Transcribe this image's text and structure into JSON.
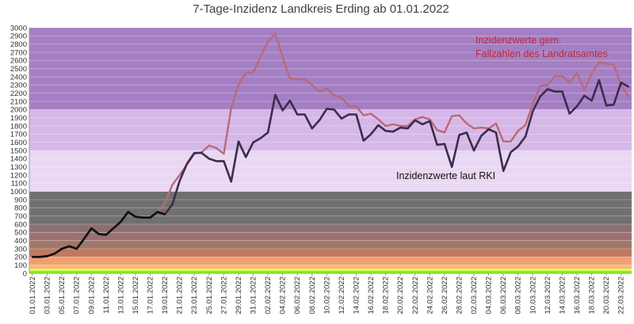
{
  "chart_data": {
    "type": "line",
    "title": "7-Tage-Inzidenz Landkreis Erding ab 01.01.2022",
    "xlabel": "",
    "ylabel": "",
    "ylim": [
      0,
      3000
    ],
    "yticks": [
      0,
      100,
      200,
      300,
      400,
      500,
      600,
      700,
      800,
      900,
      1000,
      1100,
      1200,
      1300,
      1400,
      1500,
      1600,
      1700,
      1800,
      1900,
      2000,
      2100,
      2200,
      2300,
      2400,
      2500,
      2600,
      2700,
      2800,
      2900,
      3000
    ],
    "xtick_labels": [
      "01.01.2022",
      "03.01.2022",
      "05.01.2022",
      "07.01.2022",
      "09.01.2022",
      "11.01.2022",
      "13.01.2022",
      "15.01.2022",
      "17.01.2022",
      "19.01.2022",
      "21.01.2022",
      "23.01.2022",
      "25.01.2022",
      "27.01.2022",
      "29.01.2022",
      "31.01.2022",
      "02.02.2022",
      "04.02.2022",
      "06.02.2022",
      "08.02.2022",
      "10.02.2022",
      "12.02.2022",
      "14.02.2022",
      "16.02.2022",
      "18.02.2022",
      "20.02.2022",
      "22.02.2022",
      "24.02.2022",
      "26.02.2022",
      "28.02.2022",
      "02.03.2022",
      "04.03.2022",
      "06.03.2022",
      "08.03.2022",
      "10.03.2022",
      "12.03.2022",
      "14.03.2022",
      "16.03.2022",
      "18.03.2022",
      "20.03.2022",
      "22.03.2022"
    ],
    "grid": true,
    "background_bands": [
      {
        "from": 0,
        "to": 35,
        "color": "#7fff00"
      },
      {
        "from": 35,
        "to": 50,
        "color": "#ffff80"
      },
      {
        "from": 50,
        "to": 100,
        "color": "#f4c070"
      },
      {
        "from": 100,
        "to": 200,
        "color": "#f0a070"
      },
      {
        "from": 200,
        "to": 300,
        "color": "#c07860"
      },
      {
        "from": 300,
        "to": 400,
        "color": "#a07868"
      },
      {
        "from": 400,
        "to": 500,
        "color": "#9a7070"
      },
      {
        "from": 500,
        "to": 600,
        "color": "#8c7070"
      },
      {
        "from": 600,
        "to": 1000,
        "color": "#707070"
      },
      {
        "from": 1000,
        "to": 1500,
        "color": "#e9d8f3"
      },
      {
        "from": 1500,
        "to": 2000,
        "color": "#d6b8e8"
      },
      {
        "from": 2000,
        "to": 3000,
        "color": "#a57fc4"
      }
    ],
    "annotations": [
      {
        "text": "Inzidenzwerte gem.",
        "series": "Inzidenzwerte gem. Fallzahlen des Landratsamtes",
        "color": "#c0283c"
      },
      {
        "text": "Fallzahlen des Landratsamtes",
        "series": "Inzidenzwerte gem. Fallzahlen des Landratsamtes",
        "color": "#c0283c"
      },
      {
        "text": "Inzidenzwerte laut RKI",
        "series": "Inzidenzwerte laut RKI",
        "color": "#111111"
      }
    ],
    "series": [
      {
        "name": "Inzidenzwerte gem. Fallzahlen des Landratsamtes",
        "color": "#b86a78",
        "values": [
          200,
          200,
          210,
          240,
          300,
          330,
          300,
          420,
          550,
          480,
          470,
          550,
          630,
          750,
          690,
          680,
          680,
          750,
          850,
          1080,
          1200,
          1330,
          1460,
          1480,
          1560,
          1530,
          1460,
          2020,
          2300,
          2450,
          2450,
          2650,
          2830,
          2930,
          2640,
          2380,
          2370,
          2370,
          2300,
          2220,
          2260,
          2170,
          2150,
          2040,
          2040,
          1930,
          1950,
          1880,
          1800,
          1820,
          1800,
          1800,
          1880,
          1910,
          1880,
          1750,
          1720,
          1920,
          1930,
          1830,
          1770,
          1780,
          1770,
          1830,
          1610,
          1610,
          1740,
          1810,
          2070,
          2290,
          2300,
          2410,
          2410,
          2330,
          2450,
          2240,
          2440,
          2580,
          2560,
          2550,
          2300,
          2160
        ]
      },
      {
        "name": "Inzidenzwerte laut RKI",
        "color": "#3c2c4c",
        "values": [
          200,
          200,
          210,
          240,
          300,
          330,
          300,
          420,
          550,
          480,
          470,
          550,
          630,
          750,
          690,
          680,
          680,
          750,
          720,
          840,
          1130,
          1340,
          1470,
          1470,
          1400,
          1370,
          1370,
          1120,
          1610,
          1420,
          1600,
          1650,
          1720,
          2180,
          1990,
          2110,
          1940,
          1940,
          1770,
          1870,
          2010,
          2000,
          1890,
          1940,
          1940,
          1620,
          1700,
          1810,
          1740,
          1730,
          1780,
          1770,
          1870,
          1820,
          1860,
          1570,
          1580,
          1300,
          1690,
          1720,
          1500,
          1680,
          1760,
          1720,
          1250,
          1480,
          1550,
          1670,
          1980,
          2160,
          2250,
          2220,
          2220,
          1950,
          2040,
          2170,
          2110,
          2360,
          2050,
          2060,
          2330,
          2280
        ]
      }
    ]
  }
}
